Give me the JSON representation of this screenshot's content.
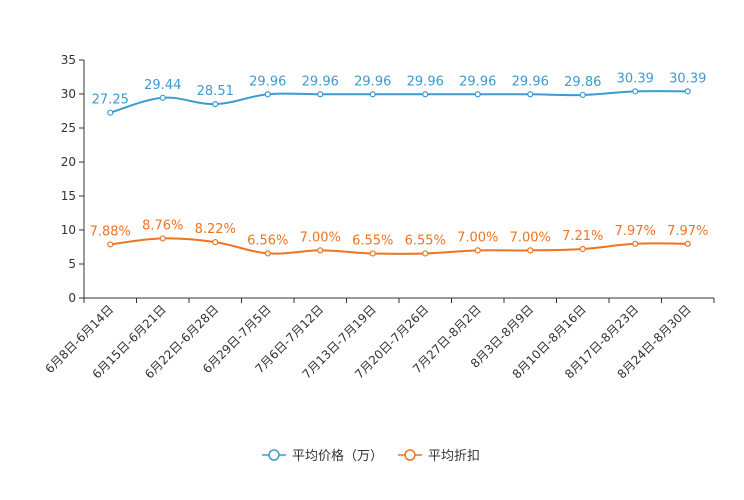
{
  "chart_data": {
    "type": "line",
    "title": "",
    "xlabel": "",
    "ylabel": "",
    "ylim": [
      0,
      35
    ],
    "yticks": [
      0,
      5,
      10,
      15,
      20,
      25,
      30,
      35
    ],
    "grid": false,
    "legend_position": "bottom-center",
    "categories": [
      "6月8日-6月14日",
      "6月15日-6月21日",
      "6月22日-6月28日",
      "6月29日-7月5日",
      "7月6日-7月12日",
      "7月13日-7月19日",
      "7月20日-7月26日",
      "7月27日-8月2日",
      "8月3日-8月9日",
      "8月10日-8月16日",
      "8月17日-8月23日",
      "8月24日-8月30日"
    ],
    "series": [
      {
        "name": "平均价格（万）",
        "color": "#3c9bd0",
        "values": [
          27.25,
          29.44,
          28.51,
          29.96,
          29.96,
          29.96,
          29.96,
          29.96,
          29.96,
          29.86,
          30.39,
          30.39
        ],
        "labels": [
          "27.25",
          "29.44",
          "28.51",
          "29.96",
          "29.96",
          "29.96",
          "29.96",
          "29.96",
          "29.96",
          "29.86",
          "30.39",
          "30.39"
        ]
      },
      {
        "name": "平均折扣",
        "color": "#ee7421",
        "values": [
          7.88,
          8.76,
          8.22,
          6.56,
          7.0,
          6.55,
          6.55,
          7.0,
          7.0,
          7.21,
          7.97,
          7.97
        ],
        "labels": [
          "7.88%",
          "8.76%",
          "8.22%",
          "6.56%",
          "7.00%",
          "6.55%",
          "6.55%",
          "7.00%",
          "7.00%",
          "7.21%",
          "7.97%",
          "7.97%"
        ]
      }
    ]
  }
}
